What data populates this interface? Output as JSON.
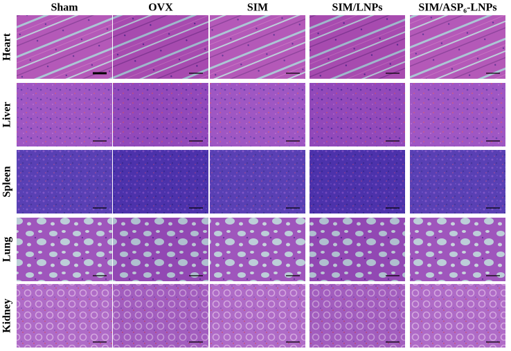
{
  "columns": [
    "Sham",
    "OVX",
    "SIM",
    "SIM/LNPs",
    "SIM/ASP₆-LNPs"
  ],
  "rows": [
    "Heart",
    "Liver",
    "Spleen",
    "Lung",
    "Kidney"
  ]
}
